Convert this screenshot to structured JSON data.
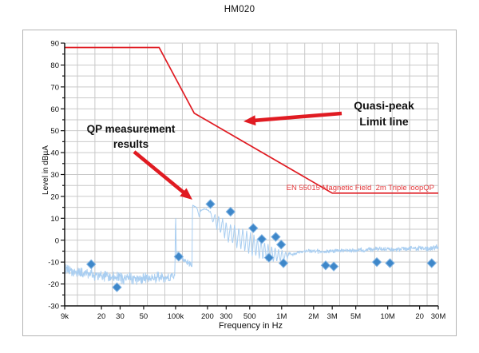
{
  "title": "HM020",
  "chart_data": {
    "type": "line",
    "title": "HM020",
    "xlabel": "Frequency in Hz",
    "ylabel": "Level in dBµA",
    "x_scale": "log",
    "x_range": [
      9000,
      30000000
    ],
    "y_range": [
      -30,
      90
    ],
    "y_tick_step": 10,
    "grid": true,
    "x_ticks": [
      {
        "label": "9k",
        "value": 9000
      },
      {
        "label": "20",
        "value": 20000
      },
      {
        "label": "30",
        "value": 30000
      },
      {
        "label": "50",
        "value": 50000
      },
      {
        "label": "100k",
        "value": 100000
      },
      {
        "label": "200",
        "value": 200000
      },
      {
        "label": "300",
        "value": 300000
      },
      {
        "label": "500",
        "value": 500000
      },
      {
        "label": "1M",
        "value": 1000000
      },
      {
        "label": "2M",
        "value": 2000000
      },
      {
        "label": "3M",
        "value": 3000000
      },
      {
        "label": "5M",
        "value": 5000000
      },
      {
        "label": "10M",
        "value": 10000000
      },
      {
        "label": "20",
        "value": 20000000
      },
      {
        "label": "30M",
        "value": 30000000
      }
    ],
    "limit_line": {
      "name": "Quasi-peak limit line",
      "label": "EN 55015 Magnetic Field  2m Triple loopQP",
      "color": "#e01b22",
      "points": [
        [
          9000,
          88
        ],
        [
          70000,
          88
        ],
        [
          150000,
          58
        ],
        [
          3000000,
          21.5
        ],
        [
          30000000,
          21.5
        ]
      ]
    },
    "qp_results": {
      "name": "QP measurement results",
      "marker": "diamond",
      "color": "#3e87c9",
      "points": [
        [
          16000,
          -11
        ],
        [
          28000,
          -21.5
        ],
        [
          107000,
          -7.5
        ],
        [
          213000,
          16.5
        ],
        [
          330000,
          13
        ],
        [
          540000,
          5.5
        ],
        [
          650000,
          0.5
        ],
        [
          760000,
          -8
        ],
        [
          880000,
          1.5
        ],
        [
          990000,
          -2
        ],
        [
          1040000,
          -10.5
        ],
        [
          2600000,
          -11.5
        ],
        [
          3100000,
          -12
        ],
        [
          7900000,
          -10
        ],
        [
          10500000,
          -10.5
        ],
        [
          26000000,
          -10.5
        ]
      ]
    },
    "trace": {
      "name": "Measured emission spectrum",
      "color": "#a9cef1",
      "baseline": [
        [
          9000,
          -13.5,
          3
        ],
        [
          11000,
          -14.5,
          3
        ],
        [
          15000,
          -15.5,
          3.2
        ],
        [
          20000,
          -16.5,
          3.2
        ],
        [
          28000,
          -17,
          3.5
        ],
        [
          40000,
          -17.5,
          3.3
        ],
        [
          60000,
          -17.5,
          3.3
        ],
        [
          85000,
          -17.2,
          3.5
        ],
        [
          96000,
          -16.5,
          2.5
        ],
        [
          98500,
          -16,
          1
        ],
        [
          100000,
          14,
          0.5
        ],
        [
          101500,
          -5,
          1
        ],
        [
          104000,
          -7,
          2
        ],
        [
          112000,
          -8,
          2.2
        ],
        [
          125000,
          -9.5,
          2.2
        ],
        [
          140000,
          -11.5,
          1.5
        ],
        [
          143200,
          -12,
          0.4
        ],
        [
          144200,
          16,
          0.3
        ],
        [
          150000,
          15.5,
          0.4
        ],
        [
          158000,
          15,
          0.4
        ],
        [
          163000,
          13,
          0.5
        ],
        [
          167000,
          10.5,
          0.6
        ],
        [
          171000,
          13.5,
          0.5
        ],
        [
          180000,
          14,
          0.4
        ],
        [
          193000,
          14.2,
          0.4
        ],
        [
          205000,
          13.5,
          0.5
        ],
        [
          215000,
          12.5,
          0.6
        ],
        [
          225000,
          8,
          0.8
        ],
        [
          235000,
          12,
          0.6
        ],
        [
          245000,
          5,
          0.8
        ],
        [
          255000,
          11.5,
          0.6
        ],
        [
          265000,
          3,
          0.8
        ],
        [
          278000,
          10,
          0.6
        ],
        [
          290000,
          1,
          0.8
        ],
        [
          300000,
          8.5,
          0.6
        ],
        [
          315000,
          -1,
          0.8
        ],
        [
          330000,
          7.5,
          0.6
        ],
        [
          345000,
          -2,
          0.8
        ],
        [
          360000,
          7,
          0.6
        ],
        [
          378000,
          -3.5,
          0.8
        ],
        [
          395000,
          6,
          0.6
        ],
        [
          412000,
          -4.5,
          0.8
        ],
        [
          430000,
          5.5,
          0.6
        ],
        [
          450000,
          -5.5,
          0.8
        ],
        [
          468000,
          4.5,
          0.6
        ],
        [
          488000,
          -6.5,
          0.8
        ],
        [
          508000,
          3.5,
          0.6
        ],
        [
          528000,
          -7.5,
          0.8
        ],
        [
          548000,
          2.5,
          0.6
        ],
        [
          570000,
          -8,
          0.8
        ],
        [
          592000,
          1.5,
          0.6
        ],
        [
          615000,
          -8.5,
          0.8
        ],
        [
          640000,
          0.5,
          0.6
        ],
        [
          665000,
          -9,
          0.8
        ],
        [
          690000,
          -0.5,
          0.6
        ],
        [
          718000,
          -9.5,
          0.8
        ],
        [
          745000,
          -1.5,
          0.6
        ],
        [
          775000,
          -10,
          0.8
        ],
        [
          805000,
          -2.5,
          0.6
        ],
        [
          835000,
          -10,
          0.8
        ],
        [
          868000,
          -3,
          0.6
        ],
        [
          900000,
          -10,
          0.8
        ],
        [
          935000,
          -4,
          0.6
        ],
        [
          970000,
          -10,
          0.8
        ],
        [
          1010000,
          -4.5,
          0.6
        ],
        [
          1050000,
          -9.5,
          0.8
        ],
        [
          1090000,
          -5,
          0.6
        ],
        [
          1130000,
          -8.5,
          0.8
        ],
        [
          1180000,
          -5.5,
          0.9
        ],
        [
          1250000,
          -7,
          1
        ],
        [
          1400000,
          -5.5,
          1.2
        ],
        [
          1700000,
          -5,
          1.2
        ],
        [
          2200000,
          -5,
          1.2
        ],
        [
          3000000,
          -5,
          1.2
        ],
        [
          4000000,
          -4.8,
          1.2
        ],
        [
          5500000,
          -4.5,
          1.3
        ],
        [
          7000000,
          -4.2,
          1.4
        ],
        [
          8500000,
          -4,
          1.5
        ],
        [
          10000000,
          -4.2,
          1.3
        ],
        [
          12000000,
          -4.3,
          1.2
        ],
        [
          14000000,
          -4,
          1.4
        ],
        [
          17000000,
          -3.8,
          1.5
        ],
        [
          20000000,
          -3.7,
          1.5
        ],
        [
          24000000,
          -3.6,
          1.6
        ],
        [
          30000000,
          -3.5,
          1.6
        ]
      ]
    }
  },
  "annotations": {
    "qp": {
      "lines": [
        "QP measurement",
        "results"
      ]
    },
    "limit": {
      "lines": [
        "Quasi-peak",
        "Limit line"
      ]
    }
  },
  "colors": {
    "red": "#e01b22",
    "trace_blue": "#a9cef1",
    "marker_blue": "#3e87c9",
    "grid_gray": "#c9c9c9"
  }
}
